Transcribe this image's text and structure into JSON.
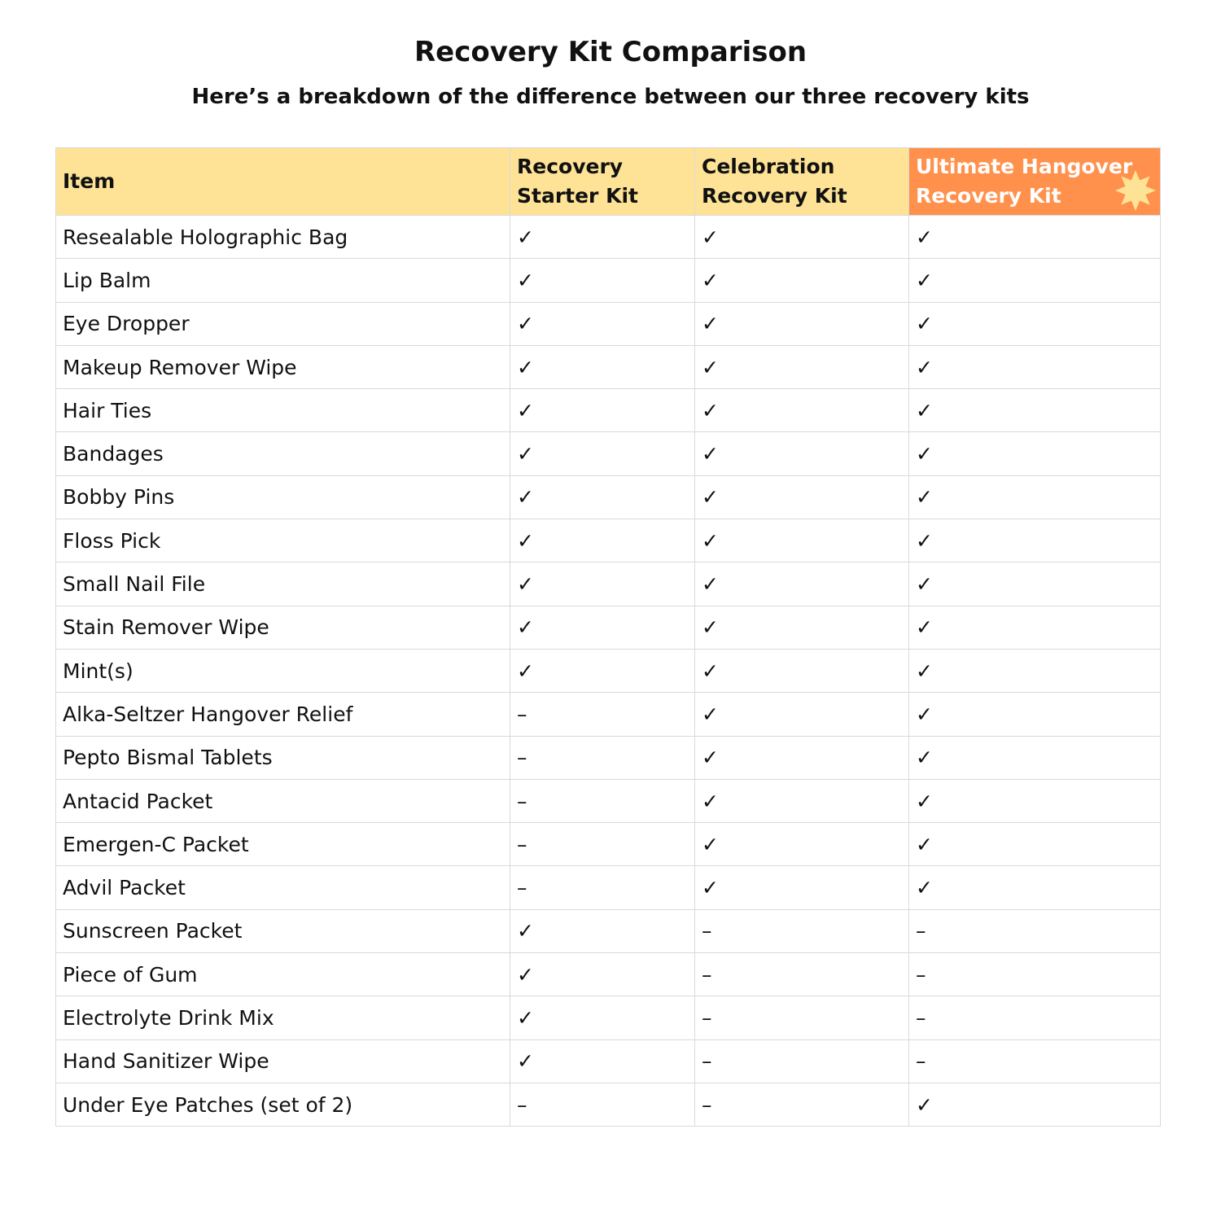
{
  "title": "Recovery Kit Comparison",
  "subtitle": "Here’s a breakdown of the difference between our three recovery kits",
  "colors": {
    "header": "#fee396",
    "highlight_header": "#ff914d",
    "star": "#fee396",
    "border": "#d9d9d9"
  },
  "columns": [
    "Item",
    "Recovery Starter Kit",
    "Celebration Recovery Kit",
    "Ultimate Hangover Recovery Kit"
  ],
  "highlight_icon": "star-icon",
  "rows": [
    [
      "Resealable Holographic Bag",
      "✓",
      "✓",
      "✓"
    ],
    [
      "Lip Balm",
      "✓",
      "✓",
      "✓"
    ],
    [
      "Eye Dropper",
      "✓",
      "✓",
      "✓"
    ],
    [
      "Makeup Remover Wipe",
      "✓",
      "✓",
      "✓"
    ],
    [
      "Hair Ties",
      "✓",
      "✓",
      "✓"
    ],
    [
      "Bandages",
      "✓",
      "✓",
      "✓"
    ],
    [
      "Bobby Pins",
      "✓",
      "✓",
      "✓"
    ],
    [
      "Floss Pick",
      "✓",
      "✓",
      "✓"
    ],
    [
      "Small Nail File",
      "✓",
      "✓",
      "✓"
    ],
    [
      "Stain Remover Wipe",
      "✓",
      "✓",
      "✓"
    ],
    [
      "Mint(s)",
      "✓",
      "✓",
      "✓"
    ],
    [
      "Alka-Seltzer Hangover Relief",
      "–",
      "✓",
      "✓"
    ],
    [
      "Pepto Bismal Tablets",
      "–",
      "✓",
      "✓"
    ],
    [
      "Antacid Packet",
      "–",
      "✓",
      "✓"
    ],
    [
      "Emergen-C Packet",
      "–",
      "✓",
      "✓"
    ],
    [
      "Advil Packet",
      "–",
      "✓",
      "✓"
    ],
    [
      "Sunscreen Packet",
      "✓",
      "–",
      "–"
    ],
    [
      "Piece of Gum",
      "✓",
      "–",
      "–"
    ],
    [
      "Electrolyte Drink Mix",
      "✓",
      "–",
      "–"
    ],
    [
      "Hand Sanitizer Wipe",
      "✓",
      "–",
      "–"
    ],
    [
      "Under Eye Patches (set of 2)",
      "–",
      "–",
      "✓"
    ]
  ]
}
